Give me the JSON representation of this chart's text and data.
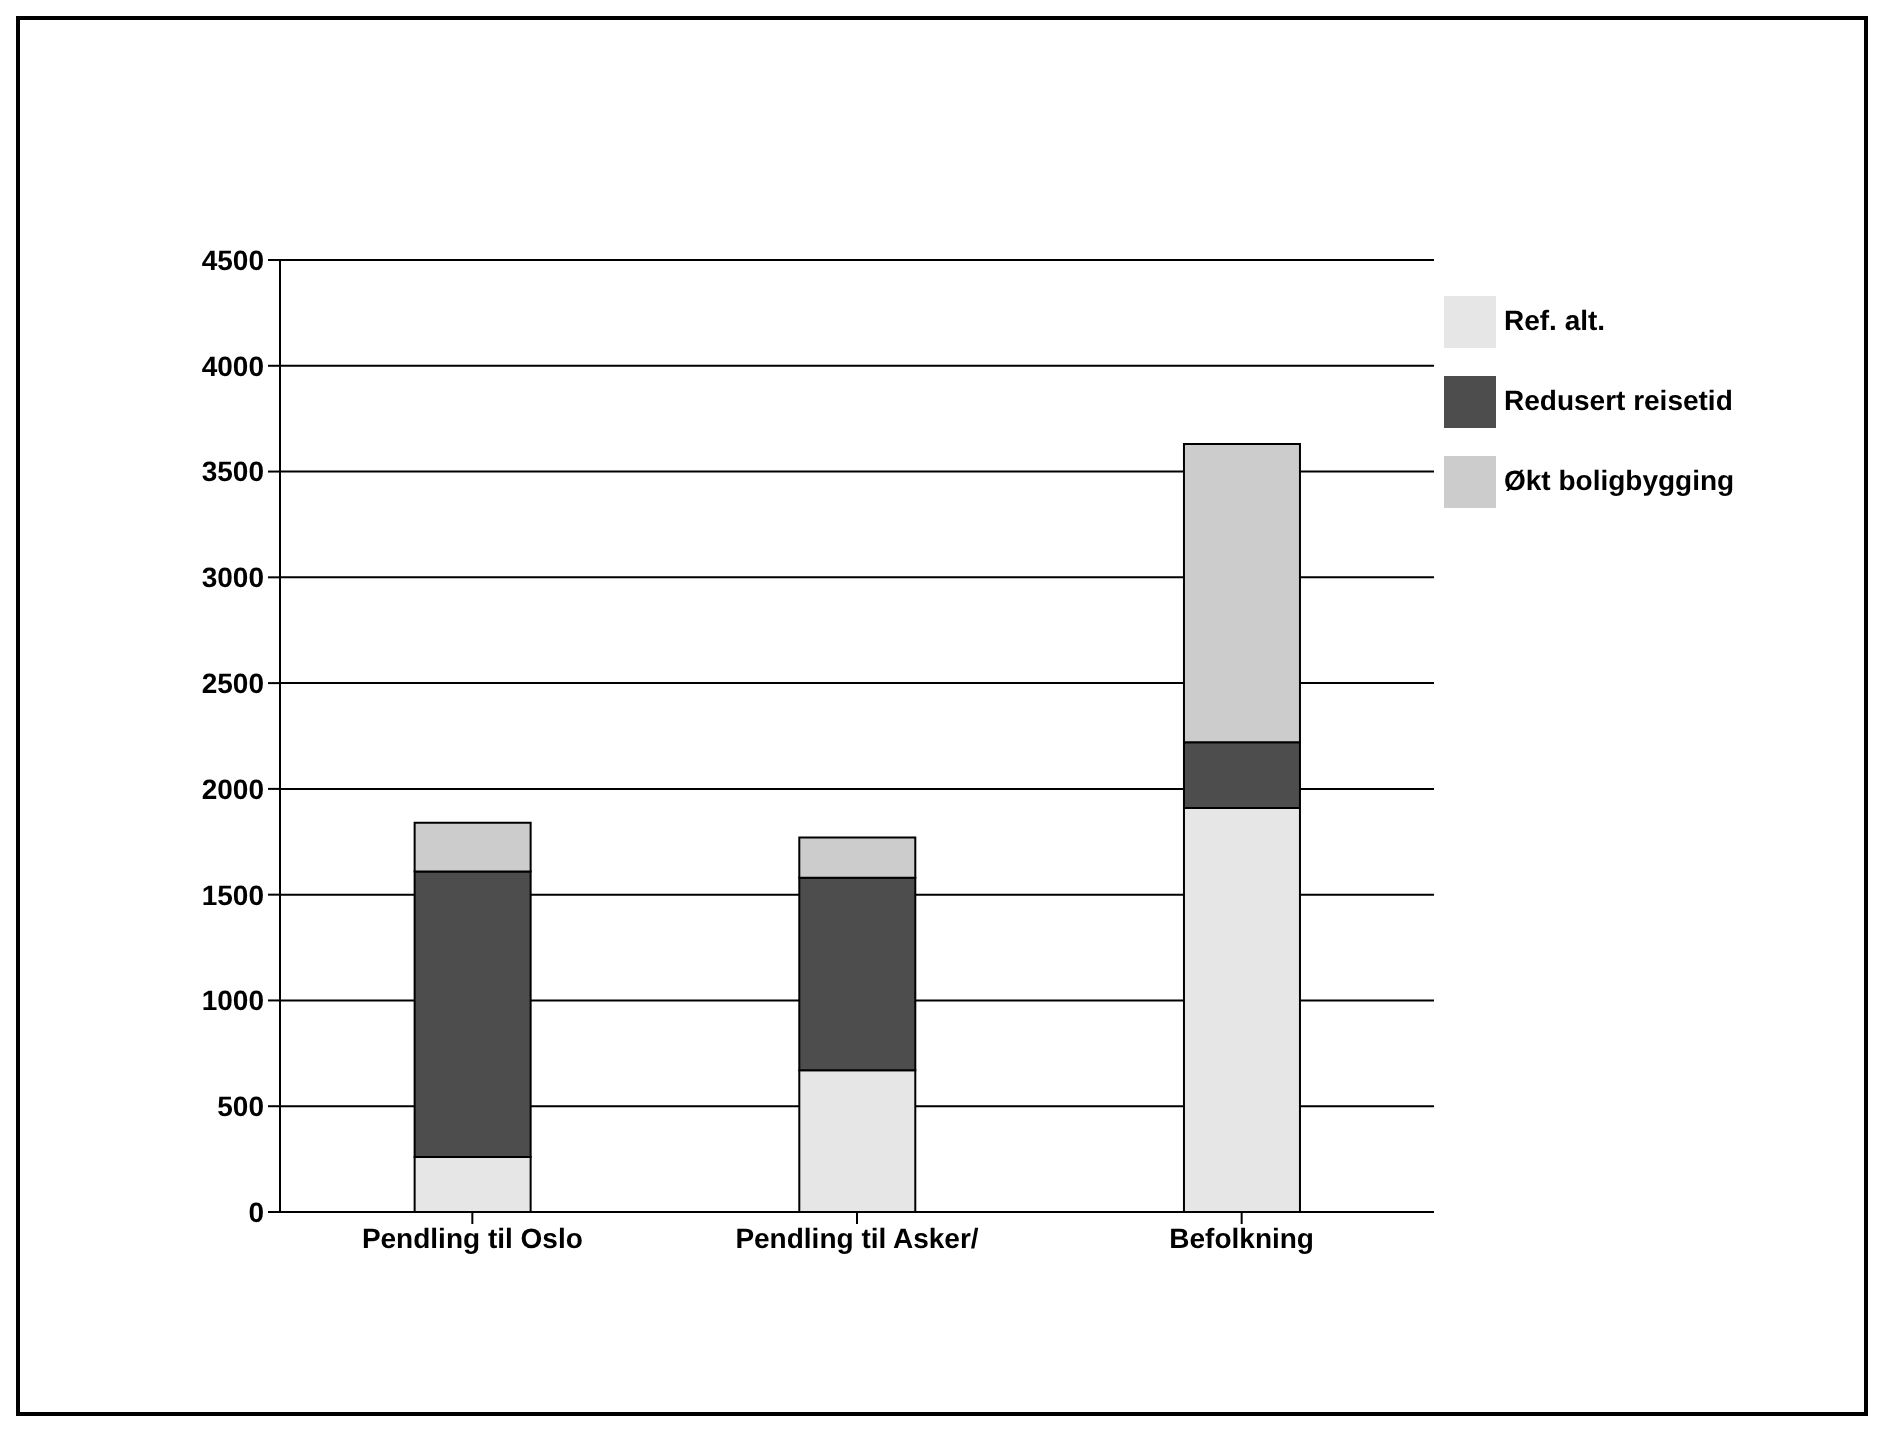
{
  "chart_data": {
    "type": "bar",
    "stacked": true,
    "categories": [
      "Pendling til Oslo",
      "Pendling til Asker/",
      "Befolkning"
    ],
    "series": [
      {
        "name": "Ref. alt.",
        "color": "#e6e6e6",
        "values": [
          260,
          670,
          1910
        ]
      },
      {
        "name": "Redusert reisetid",
        "color": "#4d4d4d",
        "values": [
          1350,
          910,
          310
        ]
      },
      {
        "name": "Økt boligbygging",
        "color": "#cccccc",
        "values": [
          230,
          190,
          1410
        ]
      }
    ],
    "ylim": [
      0,
      4500
    ],
    "yticks": [
      0,
      500,
      1000,
      1500,
      2000,
      2500,
      3000,
      3500,
      4000,
      4500
    ],
    "grid": "y",
    "legend": "top right"
  }
}
